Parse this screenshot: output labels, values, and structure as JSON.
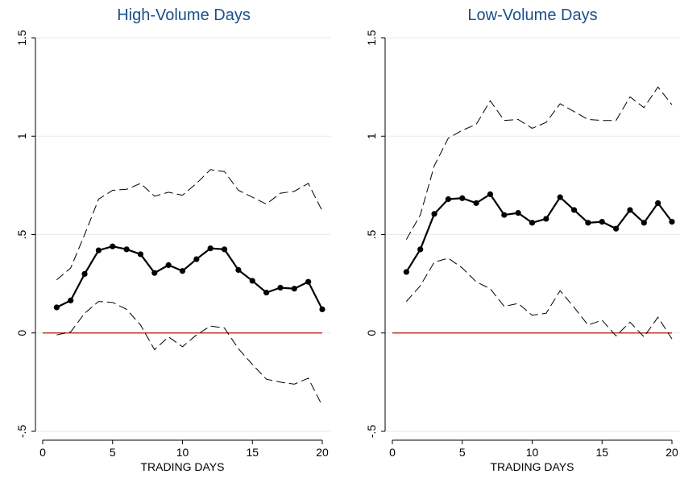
{
  "chart_data": [
    {
      "type": "line",
      "title": "High-Volume Days",
      "xlabel": "TRADING DAYS",
      "ylabel": "",
      "xlim": [
        0,
        20
      ],
      "ylim": [
        -0.5,
        1.5
      ],
      "xticks": [
        0,
        5,
        10,
        15,
        20
      ],
      "xtick_labels": [
        "0",
        "5",
        "10",
        "15",
        "20"
      ],
      "yticks": [
        -0.5,
        0,
        0.5,
        1,
        1.5
      ],
      "ytick_labels": [
        "-.5",
        "0",
        ".5",
        "1",
        "1.5"
      ],
      "grid": true,
      "zero_line_color": "#c0392b",
      "x": [
        1,
        2,
        3,
        4,
        5,
        6,
        7,
        8,
        9,
        10,
        11,
        12,
        13,
        14,
        15,
        16,
        17,
        18,
        19,
        20
      ],
      "series": [
        {
          "style": "solid-markers",
          "values": [
            0.13,
            0.165,
            0.3,
            0.42,
            0.44,
            0.425,
            0.4,
            0.305,
            0.345,
            0.315,
            0.375,
            0.43,
            0.425,
            0.32,
            0.265,
            0.205,
            0.23,
            0.225,
            0.26,
            0.12
          ]
        },
        {
          "style": "dashed",
          "values": [
            0.27,
            0.33,
            0.5,
            0.68,
            0.725,
            0.73,
            0.76,
            0.695,
            0.715,
            0.7,
            0.76,
            0.83,
            0.82,
            0.725,
            0.69,
            0.655,
            0.71,
            0.72,
            0.76,
            0.62
          ]
        },
        {
          "style": "dashed",
          "values": [
            -0.01,
            0.005,
            0.1,
            0.16,
            0.155,
            0.12,
            0.04,
            -0.085,
            -0.02,
            -0.07,
            -0.01,
            0.035,
            0.025,
            -0.08,
            -0.16,
            -0.235,
            -0.25,
            -0.26,
            -0.23,
            -0.37
          ]
        }
      ]
    },
    {
      "type": "line",
      "title": "Low-Volume Days",
      "xlabel": "TRADING DAYS",
      "ylabel": "",
      "xlim": [
        0,
        20
      ],
      "ylim": [
        -0.5,
        1.5
      ],
      "xticks": [
        0,
        5,
        10,
        15,
        20
      ],
      "xtick_labels": [
        "0",
        "5",
        "10",
        "15",
        "20"
      ],
      "yticks": [
        -0.5,
        0,
        0.5,
        1,
        1.5
      ],
      "ytick_labels": [
        "-.5",
        "0",
        ".5",
        "1",
        "1.5"
      ],
      "grid": true,
      "zero_line_color": "#c0392b",
      "x": [
        1,
        2,
        3,
        4,
        5,
        6,
        7,
        8,
        9,
        10,
        11,
        12,
        13,
        14,
        15,
        16,
        17,
        18,
        19,
        20
      ],
      "series": [
        {
          "style": "solid-markers",
          "values": [
            0.31,
            0.425,
            0.605,
            0.68,
            0.685,
            0.66,
            0.705,
            0.6,
            0.61,
            0.56,
            0.58,
            0.69,
            0.625,
            0.56,
            0.565,
            0.53,
            0.625,
            0.56,
            0.66,
            0.565
          ]
        },
        {
          "style": "dashed",
          "values": [
            0.475,
            0.6,
            0.85,
            0.99,
            1.03,
            1.06,
            1.18,
            1.08,
            1.085,
            1.04,
            1.07,
            1.165,
            1.125,
            1.085,
            1.08,
            1.08,
            1.2,
            1.145,
            1.25,
            1.16
          ]
        },
        {
          "style": "dashed",
          "values": [
            0.16,
            0.24,
            0.36,
            0.38,
            0.33,
            0.26,
            0.225,
            0.135,
            0.15,
            0.09,
            0.1,
            0.215,
            0.13,
            0.04,
            0.065,
            -0.015,
            0.055,
            -0.02,
            0.08,
            -0.03
          ]
        }
      ]
    }
  ]
}
